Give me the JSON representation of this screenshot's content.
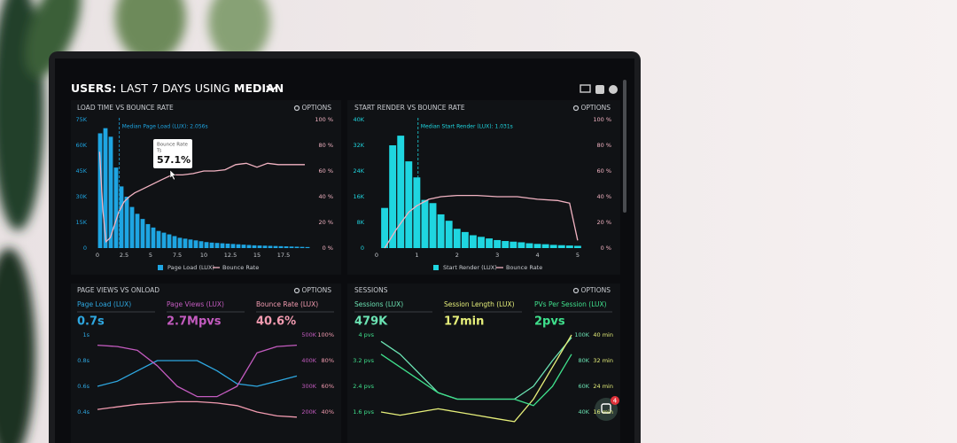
{
  "header": {
    "prefix": "USERS:",
    "range": "LAST 7 DAYS",
    "using": "USING",
    "stat": "MEDIAN"
  },
  "badge": "4",
  "chart_data": [
    {
      "type": "histogram",
      "title": "LOAD TIME VS BOUNCE RATE",
      "options": "OPTIONS",
      "annotation": "Median Page Load (LUX): 2.056s",
      "median": 2.056,
      "tooltip": {
        "title": "Bounce Rate",
        "subtitle": "Ts",
        "value": "57.1%"
      },
      "bins": [
        0,
        0.5,
        1,
        1.5,
        2,
        2.5,
        3,
        3.5,
        4,
        4.5,
        5,
        5.5,
        6,
        6.5,
        7,
        7.5,
        8,
        8.5,
        9,
        9.5,
        10,
        10.5,
        11,
        11.5,
        12,
        12.5,
        13,
        13.5,
        14,
        14.5,
        15,
        15.5,
        16,
        16.5,
        17,
        17.5,
        18,
        18.5,
        19,
        19.5,
        20
      ],
      "series": [
        {
          "name": "Page Load (LUX)",
          "color": "#1ea5e2",
          "values": [
            67000,
            70000,
            65000,
            47000,
            36000,
            30000,
            24000,
            20000,
            17000,
            14000,
            12000,
            10000,
            9000,
            8000,
            7000,
            6000,
            5500,
            5000,
            4500,
            4000,
            3500,
            3200,
            3000,
            2800,
            2600,
            2400,
            2200,
            2000,
            1800,
            1600,
            1500,
            1400,
            1300,
            1200,
            1100,
            1000,
            900,
            800,
            700,
            600
          ]
        },
        {
          "name": "Bounce Rate",
          "color": "#f2b3c2",
          "axis": "y2",
          "x": [
            0.2,
            0.5,
            0.8,
            1.2,
            1.6,
            2.0,
            2.5,
            3,
            3.5,
            4,
            5,
            6,
            7,
            8,
            9,
            10,
            11,
            12,
            13,
            14,
            15,
            16,
            17,
            18,
            19.5
          ],
          "values": [
            75,
            30,
            5,
            8,
            18,
            28,
            36,
            40,
            43,
            45,
            49,
            53,
            57,
            57,
            58,
            60,
            60,
            61,
            65,
            66,
            63,
            66,
            65,
            65,
            65
          ]
        }
      ],
      "xlim": [
        0,
        20
      ],
      "xticks": [
        0,
        2.5,
        5,
        7.5,
        10,
        12.5,
        15,
        17.5
      ],
      "ylim": [
        0,
        75000
      ],
      "yticks": [
        0,
        {
          "value": 15000,
          "label": "15K"
        },
        {
          "value": 30000,
          "label": "30K"
        },
        {
          "value": 45000,
          "label": "45K"
        },
        {
          "value": 60000,
          "label": "60K"
        },
        {
          "value": 75000,
          "label": "75K"
        }
      ],
      "y2lim": [
        0,
        100
      ],
      "y2ticks": [
        {
          "value": 0,
          "label": "0 %"
        },
        {
          "value": 20,
          "label": "20 %"
        },
        {
          "value": 40,
          "label": "40 %"
        },
        {
          "value": 60,
          "label": "60 %"
        },
        {
          "value": 80,
          "label": "80 %"
        },
        {
          "value": 100,
          "label": "100 %"
        }
      ]
    },
    {
      "type": "histogram",
      "title": "START RENDER VS BOUNCE RATE",
      "options": "OPTIONS",
      "annotation": "Median Start Render (LUX): 1.031s",
      "median": 1.031,
      "bins": [
        0.1,
        0.3,
        0.5,
        0.7,
        0.9,
        1.1,
        1.3,
        1.5,
        1.7,
        1.9,
        2.1,
        2.3,
        2.5,
        2.7,
        2.9,
        3.1,
        3.3,
        3.5,
        3.7,
        3.9,
        4.1,
        4.3,
        4.5,
        4.7,
        4.9,
        5.1
      ],
      "series": [
        {
          "name": "Start Render (LUX)",
          "color": "#1fd6e0",
          "values": [
            12500,
            32000,
            35000,
            27000,
            22000,
            15000,
            14000,
            10500,
            8500,
            6000,
            5000,
            4000,
            3500,
            3000,
            2500,
            2200,
            2000,
            1800,
            1500,
            1300,
            1200,
            1000,
            900,
            800,
            700
          ]
        },
        {
          "name": "Bounce Rate",
          "color": "#f2b3c2",
          "axis": "y2",
          "x": [
            0.2,
            0.5,
            0.8,
            1.0,
            1.3,
            1.6,
            2.0,
            2.5,
            3.0,
            3.5,
            4.0,
            4.5,
            4.8,
            5.0
          ],
          "values": [
            0,
            15,
            28,
            33,
            38,
            40,
            41,
            41,
            40,
            40,
            38,
            37,
            35,
            6
          ]
        }
      ],
      "xlim": [
        0,
        5.2
      ],
      "xticks": [
        0,
        1,
        2,
        3,
        4,
        5
      ],
      "ylim": [
        0,
        40000
      ],
      "yticks": [
        0,
        {
          "value": 8000,
          "label": "8K"
        },
        {
          "value": 16000,
          "label": "16K"
        },
        {
          "value": 24000,
          "label": "24K"
        },
        {
          "value": 32000,
          "label": "32K"
        },
        {
          "value": 40000,
          "label": "40K"
        }
      ],
      "y2lim": [
        0,
        100
      ],
      "y2ticks": [
        {
          "value": 0,
          "label": "0 %"
        },
        {
          "value": 20,
          "label": "20 %"
        },
        {
          "value": 40,
          "label": "40 %"
        },
        {
          "value": 60,
          "label": "60 %"
        },
        {
          "value": 80,
          "label": "80 %"
        },
        {
          "value": 100,
          "label": "100 %"
        }
      ]
    },
    {
      "type": "line",
      "title": "PAGE VIEWS VS ONLOAD",
      "options": "OPTIONS",
      "series": [
        {
          "name": "Page Load (LUX)",
          "kpi": "0.7s",
          "color": "#2ea7e0",
          "values": [
            0.6,
            0.64,
            0.72,
            0.8,
            0.8,
            0.8,
            0.72,
            0.62,
            0.6,
            0.64,
            0.68
          ]
        },
        {
          "name": "Page Views (LUX)",
          "kpi": "2.7Mpvs",
          "color": "#c35bbf",
          "axis": "y2",
          "values": [
            460000,
            455000,
            440000,
            380000,
            300000,
            260000,
            260000,
            300000,
            430000,
            455000,
            460000
          ]
        },
        {
          "name": "Bounce Rate (LUX)",
          "kpi": "40.6%",
          "color": "#f29bb0",
          "axis": "y3",
          "values": [
            42,
            44,
            46,
            47,
            48,
            48,
            47,
            45,
            40,
            37,
            36
          ]
        }
      ],
      "ylim": [
        0.4,
        1
      ],
      "yticks": [
        {
          "value": 0.4,
          "label": "0.4s"
        },
        {
          "value": 0.6,
          "label": "0.6s"
        },
        {
          "value": 0.8,
          "label": "0.8s"
        },
        {
          "value": 1,
          "label": "1s"
        }
      ],
      "y2lim": [
        200000,
        500000
      ],
      "y2ticks": [
        {
          "value": 200000,
          "label": "200K"
        },
        {
          "value": 300000,
          "label": "300K"
        },
        {
          "value": 400000,
          "label": "400K"
        },
        {
          "value": 500000,
          "label": "500K"
        }
      ],
      "y3lim": [
        40,
        100
      ],
      "y3ticks": [
        {
          "value": 40,
          "label": "40%"
        },
        {
          "value": 60,
          "label": "60%"
        },
        {
          "value": 80,
          "label": "80%"
        },
        {
          "value": 100,
          "label": "100%"
        }
      ]
    },
    {
      "type": "line",
      "title": "SESSIONS",
      "options": "OPTIONS",
      "series": [
        {
          "name": "Sessions (LUX)",
          "kpi": "479K",
          "color": "#6be3b3",
          "axis": "y2",
          "values": [
            95000,
            85000,
            70000,
            55000,
            50000,
            50000,
            50000,
            50000,
            60000,
            80000,
            98000
          ]
        },
        {
          "name": "Session Length (LUX)",
          "kpi": "17min",
          "color": "#e6ef7a",
          "axis": "y3",
          "values": [
            16,
            15,
            16,
            17,
            16,
            15,
            14,
            13,
            20,
            30,
            40
          ]
        },
        {
          "name": "PVs Per Session (LUX)",
          "kpi": "2pvs",
          "color": "#3fe08c",
          "values": [
            3.4,
            3.0,
            2.6,
            2.2,
            2.0,
            2.0,
            2.0,
            2.0,
            1.8,
            2.4,
            3.4
          ]
        }
      ],
      "ylim": [
        1.6,
        4
      ],
      "yticks": [
        {
          "value": 1.6,
          "label": "1.6 pvs"
        },
        {
          "value": 2.4,
          "label": "2.4 pvs"
        },
        {
          "value": 3.2,
          "label": "3.2 pvs"
        },
        {
          "value": 4,
          "label": "4 pvs"
        }
      ],
      "y2lim": [
        40000,
        100000
      ],
      "y2ticks": [
        {
          "value": 40000,
          "label": "40K"
        },
        {
          "value": 60000,
          "label": "60K"
        },
        {
          "value": 80000,
          "label": "80K"
        },
        {
          "value": 100000,
          "label": "100K"
        }
      ],
      "y3lim": [
        16,
        40
      ],
      "y3ticks": [
        {
          "value": 16,
          "label": "16 min"
        },
        {
          "value": 24,
          "label": "24 min"
        },
        {
          "value": 32,
          "label": "32 min"
        },
        {
          "value": 40,
          "label": "40 min"
        }
      ]
    }
  ]
}
